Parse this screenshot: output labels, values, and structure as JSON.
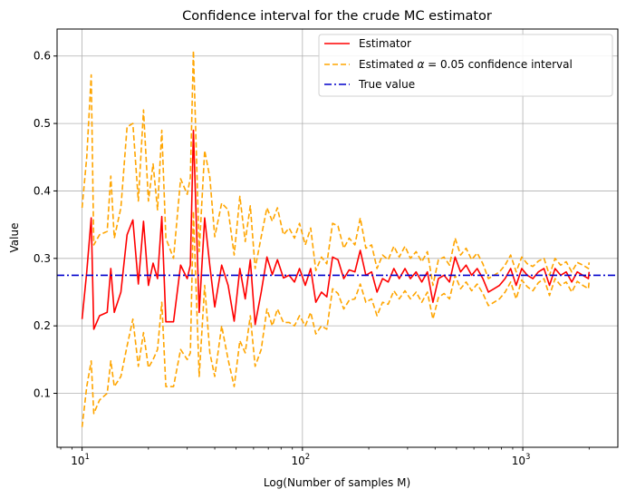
{
  "chart_data": {
    "type": "line",
    "title": "Confidence interval for the crude MC estimator",
    "xlabel": "Log(Number of samples M)",
    "ylabel": "Value",
    "xscale": "log",
    "xlim": [
      7.7,
      2700
    ],
    "ylim": [
      0.02,
      0.64
    ],
    "xticks": [
      {
        "value": 10,
        "base": "10",
        "exp": "1"
      },
      {
        "value": 100,
        "base": "10",
        "exp": "2"
      },
      {
        "value": 1000,
        "base": "10",
        "exp": "3"
      }
    ],
    "yticks": [
      {
        "value": 0.1,
        "label": "0.1"
      },
      {
        "value": 0.2,
        "label": "0.2"
      },
      {
        "value": 0.3,
        "label": "0.3"
      },
      {
        "value": 0.4,
        "label": "0.4"
      },
      {
        "value": 0.5,
        "label": "0.5"
      },
      {
        "value": 0.6,
        "label": "0.6"
      }
    ],
    "grid": true,
    "legend_position": "top-right",
    "legend": [
      {
        "label": "Estimator",
        "color": "#ff0000",
        "style": "solid"
      },
      {
        "label_prefix": "Estimated ",
        "label_symbol": "α",
        "label_suffix": " = 0.05 confidence interval",
        "color": "#ffa500",
        "style": "dashed"
      },
      {
        "label": "True value",
        "color": "#0000cc",
        "style": "dashdot"
      }
    ],
    "true_value": 0.275,
    "x": [
      10,
      10.5,
      11,
      11.3,
      12,
      13,
      13.5,
      14,
      15,
      16,
      17,
      18,
      19,
      20,
      21,
      22,
      23,
      24,
      26,
      28,
      30,
      31,
      32,
      34,
      36,
      38,
      40,
      43,
      46,
      49,
      52,
      55,
      58,
      61,
      65,
      69,
      73,
      77,
      82,
      87,
      92,
      97,
      103,
      109,
      115,
      122,
      129,
      137,
      145,
      154,
      163,
      173,
      183,
      194,
      206,
      218,
      231,
      245,
      260,
      275,
      292,
      309,
      328,
      348,
      369,
      391,
      414,
      439,
      465,
      493,
      522,
      553,
      586,
      621,
      659,
      698,
      740,
      784,
      831,
      881,
      933,
      989,
      1048,
      1111,
      1177,
      1248,
      1322,
      1401,
      1485,
      1574,
      1668,
      1767,
      1873,
      1985,
      2000
    ],
    "series": [
      {
        "name": "Estimator",
        "values": [
          0.21,
          0.28,
          0.36,
          0.195,
          0.215,
          0.22,
          0.285,
          0.22,
          0.25,
          0.335,
          0.357,
          0.262,
          0.355,
          0.26,
          0.293,
          0.27,
          0.362,
          0.206,
          0.206,
          0.29,
          0.27,
          0.29,
          0.49,
          0.22,
          0.36,
          0.289,
          0.228,
          0.29,
          0.26,
          0.207,
          0.285,
          0.24,
          0.298,
          0.202,
          0.25,
          0.302,
          0.276,
          0.298,
          0.271,
          0.275,
          0.265,
          0.285,
          0.26,
          0.285,
          0.235,
          0.25,
          0.243,
          0.302,
          0.298,
          0.27,
          0.283,
          0.28,
          0.312,
          0.275,
          0.28,
          0.25,
          0.27,
          0.265,
          0.285,
          0.27,
          0.285,
          0.27,
          0.28,
          0.265,
          0.28,
          0.235,
          0.27,
          0.275,
          0.265,
          0.302,
          0.28,
          0.29,
          0.275,
          0.285,
          0.27,
          0.25,
          0.255,
          0.26,
          0.27,
          0.285,
          0.26,
          0.285,
          0.275,
          0.27,
          0.28,
          0.285,
          0.26,
          0.285,
          0.275,
          0.28,
          0.265,
          0.28,
          0.275,
          0.27,
          0.28
        ]
      },
      {
        "name": "Estimated α = 0.05 confidence interval (upper)",
        "values": [
          0.375,
          0.45,
          0.572,
          0.32,
          0.335,
          0.34,
          0.422,
          0.33,
          0.375,
          0.495,
          0.5,
          0.385,
          0.52,
          0.385,
          0.44,
          0.372,
          0.49,
          0.33,
          0.3,
          0.418,
          0.395,
          0.42,
          0.608,
          0.31,
          0.46,
          0.42,
          0.332,
          0.382,
          0.372,
          0.305,
          0.392,
          0.325,
          0.378,
          0.285,
          0.332,
          0.375,
          0.355,
          0.375,
          0.335,
          0.345,
          0.33,
          0.352,
          0.32,
          0.345,
          0.282,
          0.302,
          0.292,
          0.352,
          0.348,
          0.315,
          0.33,
          0.32,
          0.36,
          0.315,
          0.32,
          0.285,
          0.305,
          0.298,
          0.318,
          0.302,
          0.318,
          0.3,
          0.31,
          0.295,
          0.31,
          0.26,
          0.298,
          0.302,
          0.29,
          0.33,
          0.305,
          0.315,
          0.298,
          0.308,
          0.292,
          0.27,
          0.275,
          0.28,
          0.29,
          0.305,
          0.28,
          0.302,
          0.292,
          0.288,
          0.296,
          0.3,
          0.275,
          0.3,
          0.29,
          0.295,
          0.28,
          0.294,
          0.29,
          0.285,
          0.294
        ]
      },
      {
        "name": "Estimated α = 0.05 confidence interval (lower)",
        "values": [
          0.05,
          0.11,
          0.148,
          0.07,
          0.09,
          0.1,
          0.148,
          0.11,
          0.125,
          0.17,
          0.21,
          0.14,
          0.19,
          0.138,
          0.15,
          0.165,
          0.235,
          0.11,
          0.11,
          0.165,
          0.15,
          0.16,
          0.37,
          0.125,
          0.26,
          0.16,
          0.125,
          0.2,
          0.15,
          0.11,
          0.178,
          0.16,
          0.215,
          0.14,
          0.165,
          0.225,
          0.2,
          0.225,
          0.205,
          0.205,
          0.2,
          0.215,
          0.2,
          0.22,
          0.188,
          0.2,
          0.195,
          0.255,
          0.248,
          0.225,
          0.238,
          0.24,
          0.262,
          0.235,
          0.24,
          0.215,
          0.235,
          0.232,
          0.252,
          0.24,
          0.252,
          0.24,
          0.25,
          0.235,
          0.25,
          0.21,
          0.242,
          0.248,
          0.24,
          0.275,
          0.255,
          0.265,
          0.252,
          0.262,
          0.248,
          0.23,
          0.235,
          0.24,
          0.25,
          0.265,
          0.24,
          0.268,
          0.258,
          0.252,
          0.264,
          0.27,
          0.245,
          0.27,
          0.26,
          0.265,
          0.25,
          0.266,
          0.26,
          0.255,
          0.266
        ]
      }
    ]
  }
}
